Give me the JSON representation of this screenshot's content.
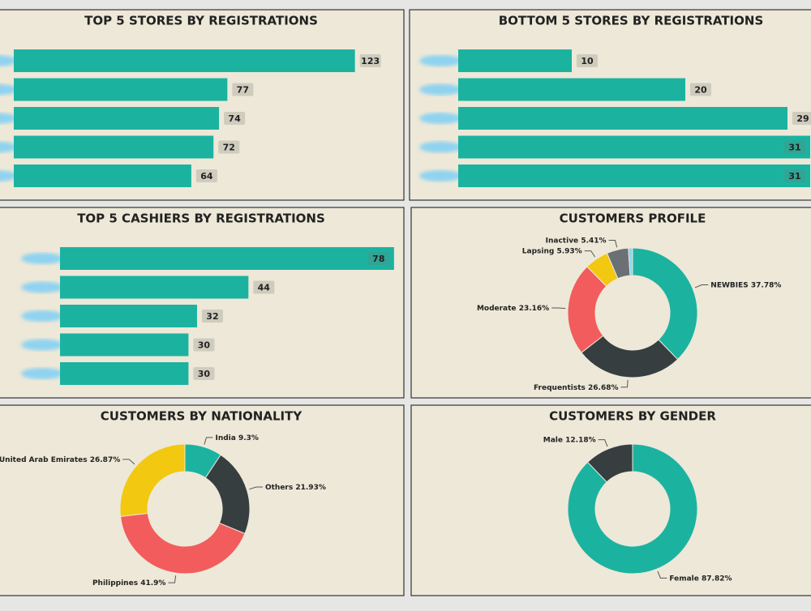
{
  "chart_data": [
    {
      "type": "hbar",
      "title": "TOP 5 STORES BY REGISTRATIONS",
      "categories": [
        null,
        null,
        null,
        null,
        null
      ],
      "values": [
        123,
        77,
        74,
        72,
        64
      ],
      "color": "#1bb3a0"
    },
    {
      "type": "hbar",
      "title": "BOTTOM 5 STORES BY REGISTRATIONS",
      "categories": [
        null,
        null,
        null,
        null,
        null
      ],
      "values": [
        10,
        20,
        29,
        31,
        31
      ],
      "color": "#1bb3a0"
    },
    {
      "type": "hbar",
      "title": "TOP 5 CASHIERS BY REGISTRATIONS",
      "categories": [
        null,
        null,
        null,
        null,
        null
      ],
      "values": [
        78,
        44,
        32,
        30,
        30
      ],
      "color": "#1bb3a0"
    },
    {
      "type": "donut",
      "title": "CUSTOMERS PROFILE",
      "categories": [
        "NEWBIES",
        "Frequentists",
        "Moderate",
        "Lapsing",
        "Inactive",
        null
      ],
      "values": [
        37.78,
        26.68,
        23.16,
        5.93,
        5.41,
        1.04
      ],
      "value_labels": [
        "37.78%",
        "26.68%",
        "23.16%",
        "5.93%",
        "5.41%",
        null
      ],
      "colors": [
        "#1bb3a0",
        "#363e40",
        "#f25c5c",
        "#f2c811",
        "#6b7074",
        "#8fd3f0"
      ]
    },
    {
      "type": "donut",
      "title": "CUSTOMERS BY NATIONALITY",
      "categories": [
        "India",
        "Others",
        "Philippines",
        "United Arab Emirates"
      ],
      "values": [
        9.3,
        21.93,
        41.9,
        26.87
      ],
      "value_labels": [
        "9.3%",
        "21.93%",
        "41.9%",
        "26.87%"
      ],
      "colors": [
        "#1bb3a0",
        "#363e40",
        "#f25c5c",
        "#f2c811"
      ]
    },
    {
      "type": "donut",
      "title": "CUSTOMERS BY GENDER",
      "categories": [
        "Female",
        "Male"
      ],
      "values": [
        87.82,
        12.18
      ],
      "value_labels": [
        "87.82%",
        "12.18%"
      ],
      "colors": [
        "#1bb3a0",
        "#363e40"
      ]
    }
  ]
}
